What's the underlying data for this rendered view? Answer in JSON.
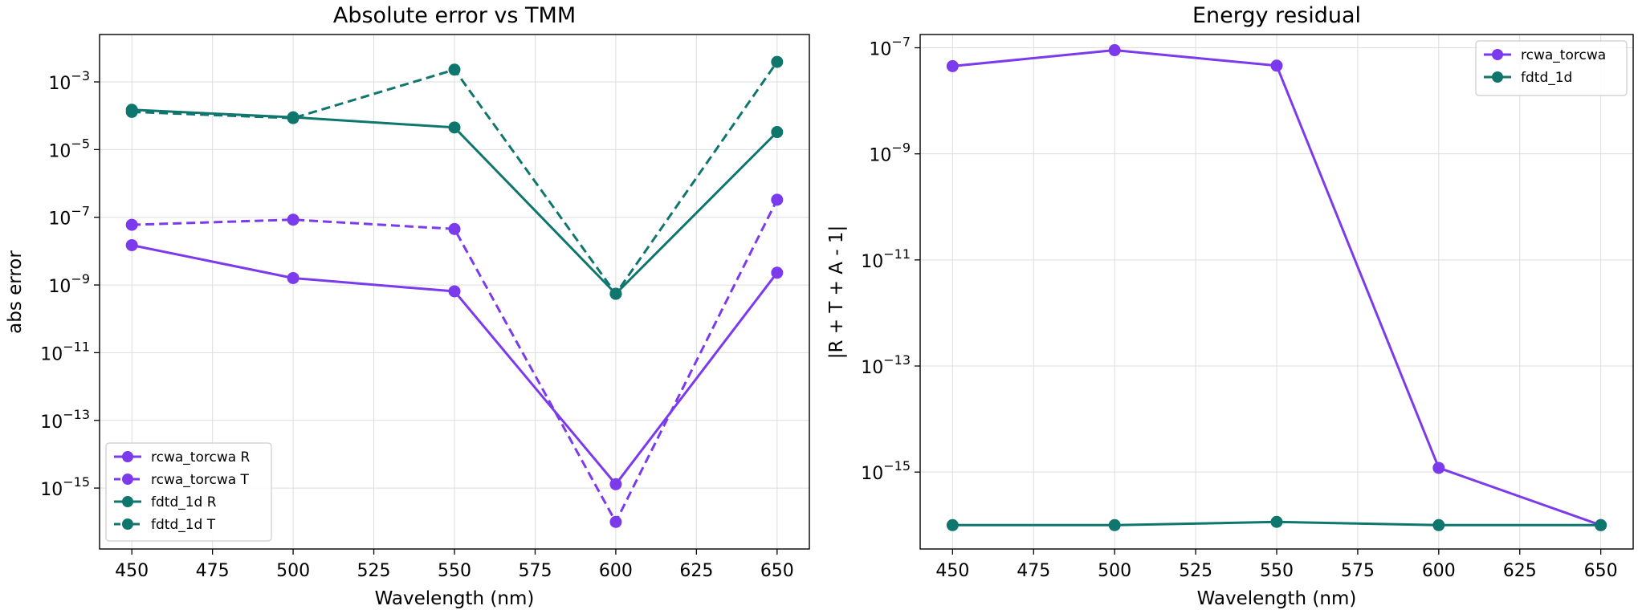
{
  "colors": {
    "rcwa": "#7c3aed",
    "fdtd": "#0f766e",
    "grid": "#dddddd"
  },
  "chart_data": [
    {
      "type": "line",
      "title": "Absolute error vs TMM",
      "xlabel": "Wavelength (nm)",
      "ylabel": "abs error",
      "yscale": "log",
      "grid": true,
      "legend_position": "lower-left",
      "xlim": [
        440,
        660
      ],
      "ylim": [
        -16.8,
        -1.6
      ],
      "x_ticks": [
        450,
        475,
        500,
        525,
        550,
        575,
        600,
        625,
        650
      ],
      "y_ticks": [
        {
          "exp": -3,
          "label": "10",
          "sup": "−3"
        },
        {
          "exp": -5,
          "label": "10",
          "sup": "−5"
        },
        {
          "exp": -7,
          "label": "10",
          "sup": "−7"
        },
        {
          "exp": -9,
          "label": "10",
          "sup": "−9"
        },
        {
          "exp": -11,
          "label": "10",
          "sup": "−11"
        },
        {
          "exp": -13,
          "label": "10",
          "sup": "−13"
        },
        {
          "exp": -15,
          "label": "10",
          "sup": "−15"
        }
      ],
      "x": [
        450,
        500,
        550,
        600,
        650
      ],
      "series": [
        {
          "name": "rcwa_torcwa R",
          "color": "#7c3aed",
          "dash": false,
          "values": [
            1.5e-08,
            1.6e-09,
            6.5e-10,
            1.3e-15,
            2.3e-09
          ]
        },
        {
          "name": "rcwa_torcwa T",
          "color": "#7c3aed",
          "dash": true,
          "values": [
            6e-08,
            8.5e-08,
            4.5e-08,
            1e-16,
            3.3e-07
          ]
        },
        {
          "name": "fdtd_1d R",
          "color": "#0f766e",
          "dash": false,
          "values": [
            0.00015,
            9e-05,
            4.5e-05,
            5.5e-10,
            3.3e-05
          ]
        },
        {
          "name": "fdtd_1d T",
          "color": "#0f766e",
          "dash": true,
          "values": [
            0.00013,
            8.5e-05,
            0.0023,
            5.5e-10,
            0.0039
          ]
        }
      ]
    },
    {
      "type": "line",
      "title": "Energy residual",
      "xlabel": "Wavelength (nm)",
      "ylabel": "|R + T + A - 1|",
      "yscale": "log",
      "grid": true,
      "legend_position": "top-right",
      "xlim": [
        440,
        660
      ],
      "ylim": [
        -16.45,
        -6.75
      ],
      "x_ticks": [
        450,
        475,
        500,
        525,
        550,
        575,
        600,
        625,
        650
      ],
      "y_ticks": [
        {
          "exp": -7,
          "label": "10",
          "sup": "−7"
        },
        {
          "exp": -9,
          "label": "10",
          "sup": "−9"
        },
        {
          "exp": -11,
          "label": "10",
          "sup": "−11"
        },
        {
          "exp": -13,
          "label": "10",
          "sup": "−13"
        },
        {
          "exp": -15,
          "label": "10",
          "sup": "−15"
        }
      ],
      "x": [
        450,
        500,
        550,
        600,
        650
      ],
      "series": [
        {
          "name": "rcwa_torcwa",
          "color": "#7c3aed",
          "dash": false,
          "values": [
            4.5e-08,
            9e-08,
            4.6e-08,
            1.2e-15,
            1e-16
          ]
        },
        {
          "name": "fdtd_1d",
          "color": "#0f766e",
          "dash": false,
          "values": [
            1e-16,
            1e-16,
            1.15e-16,
            1e-16,
            1e-16
          ]
        }
      ]
    }
  ]
}
